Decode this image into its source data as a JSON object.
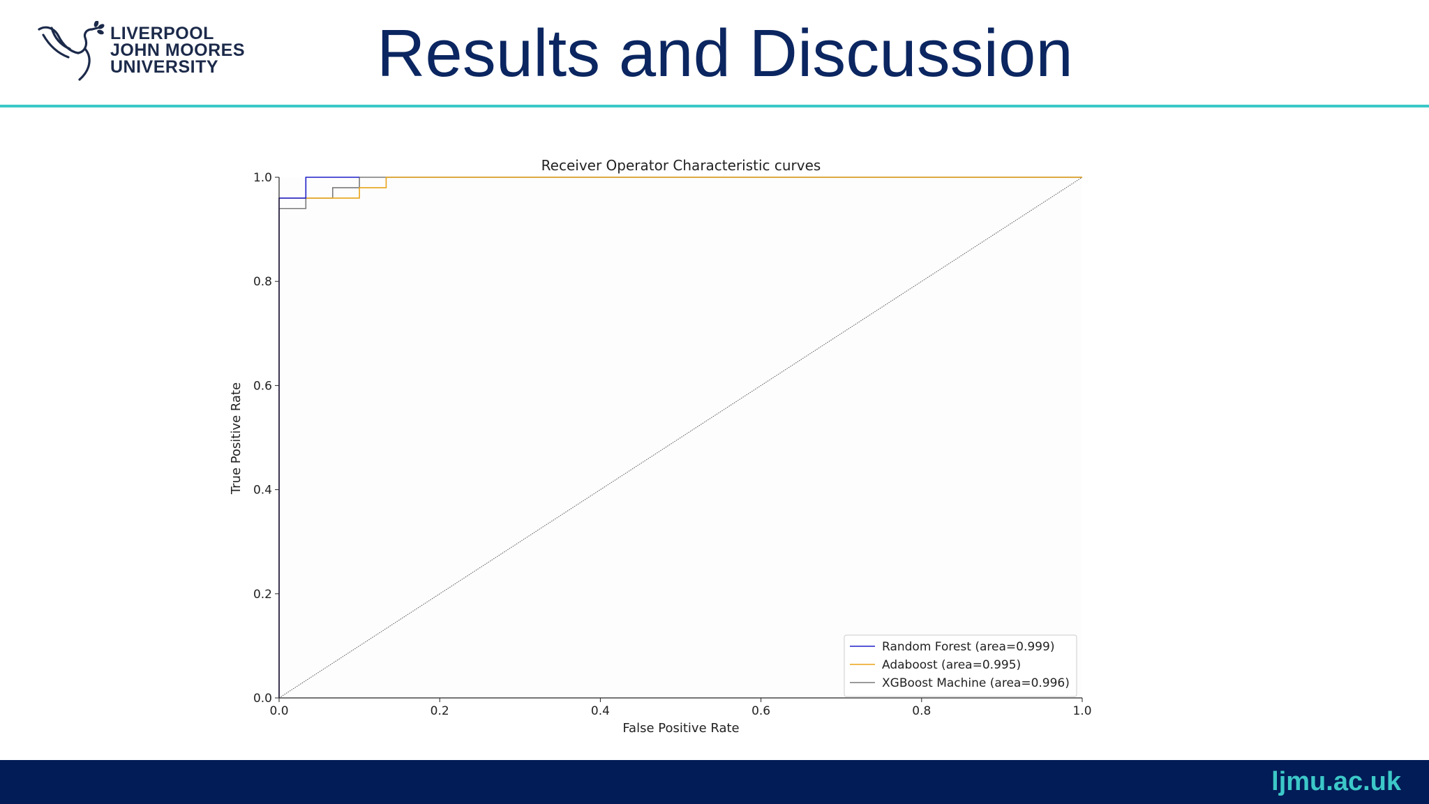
{
  "slide": {
    "title": "Results and Discussion",
    "logo_lines": [
      "LIVERPOOL",
      "JOHN MOORES",
      "UNIVERSITY"
    ],
    "footer_url": "ljmu.ac.uk"
  },
  "colors": {
    "title": "#0b2660",
    "rule": "#3cc8c8",
    "footer_bg": "#021c57",
    "footer_text": "#3cc8c8"
  },
  "chart_data": {
    "type": "line",
    "title": "Receiver Operator Characteristic curves",
    "xlabel": "False Positive Rate",
    "ylabel": "True Positive Rate",
    "xlim": [
      0.0,
      1.0
    ],
    "ylim": [
      0.0,
      1.0
    ],
    "xticks": [
      "0.0",
      "0.2",
      "0.4",
      "0.6",
      "0.8",
      "1.0"
    ],
    "yticks": [
      "0.0",
      "0.2",
      "0.4",
      "0.6",
      "0.8",
      "1.0"
    ],
    "grid": false,
    "legend_position": "lower-right",
    "diagonal": {
      "x": [
        0,
        1
      ],
      "y": [
        0,
        1
      ],
      "style": "dotted",
      "color": "#555555"
    },
    "series": [
      {
        "name": "XGBoost Machine (area=0.996)",
        "color": "#7a7a7a",
        "x": [
          0,
          0,
          0.0333,
          0.0333,
          0.0667,
          0.0667,
          0.1,
          0.1,
          1.0
        ],
        "y": [
          0,
          0.94,
          0.94,
          0.96,
          0.96,
          0.98,
          0.98,
          1.0,
          1.0
        ]
      },
      {
        "name": "Adaboost (area=0.995)",
        "color": "#e8a317",
        "x": [
          0,
          0,
          0.1,
          0.1,
          0.1333,
          0.1333,
          1.0
        ],
        "y": [
          0,
          0.96,
          0.96,
          0.98,
          0.98,
          1.0,
          1.0
        ]
      },
      {
        "name": "Random Forest (area=0.999)",
        "color": "#1f1fc8",
        "x": [
          0,
          0,
          0.0333,
          0.0333,
          0.1,
          0.1
        ],
        "y": [
          0,
          0.96,
          0.96,
          1.0,
          1.0,
          1.0
        ]
      }
    ],
    "legend_order": [
      2,
      1,
      0
    ]
  }
}
